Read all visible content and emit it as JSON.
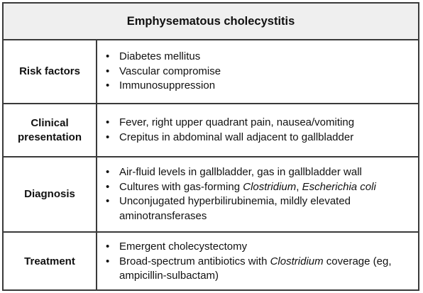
{
  "title": "Emphysematous cholecystitis",
  "rows": [
    {
      "label": "Risk factors",
      "items": [
        {
          "text": "Diabetes mellitus"
        },
        {
          "text": "Vascular compromise"
        },
        {
          "text": "Immunosuppression"
        }
      ]
    },
    {
      "label": "Clinical presentation",
      "items": [
        {
          "text": "Fever, right upper quadrant pain, nausea/vomiting"
        },
        {
          "text": "Crepitus in abdominal wall adjacent to gallbladder"
        }
      ]
    },
    {
      "label": "Diagnosis",
      "items": [
        {
          "text": "Air-fluid levels in gallbladder, gas in gallbladder wall"
        },
        {
          "text_before": "Cultures with gas-forming ",
          "italic_1": "Clostridium",
          "text_mid": ", ",
          "italic_2": "Escherichia coli"
        },
        {
          "text": "Unconjugated hyperbilirubinemia, mildly elevated aminotransferases"
        }
      ]
    },
    {
      "label": "Treatment",
      "items": [
        {
          "text": "Emergent cholecystectomy"
        },
        {
          "text_before": "Broad-spectrum antibiotics with ",
          "italic": "Clostridium",
          "text_after": " coverage (eg, ampicillin-sulbactam)"
        }
      ]
    }
  ],
  "bullet": "•"
}
